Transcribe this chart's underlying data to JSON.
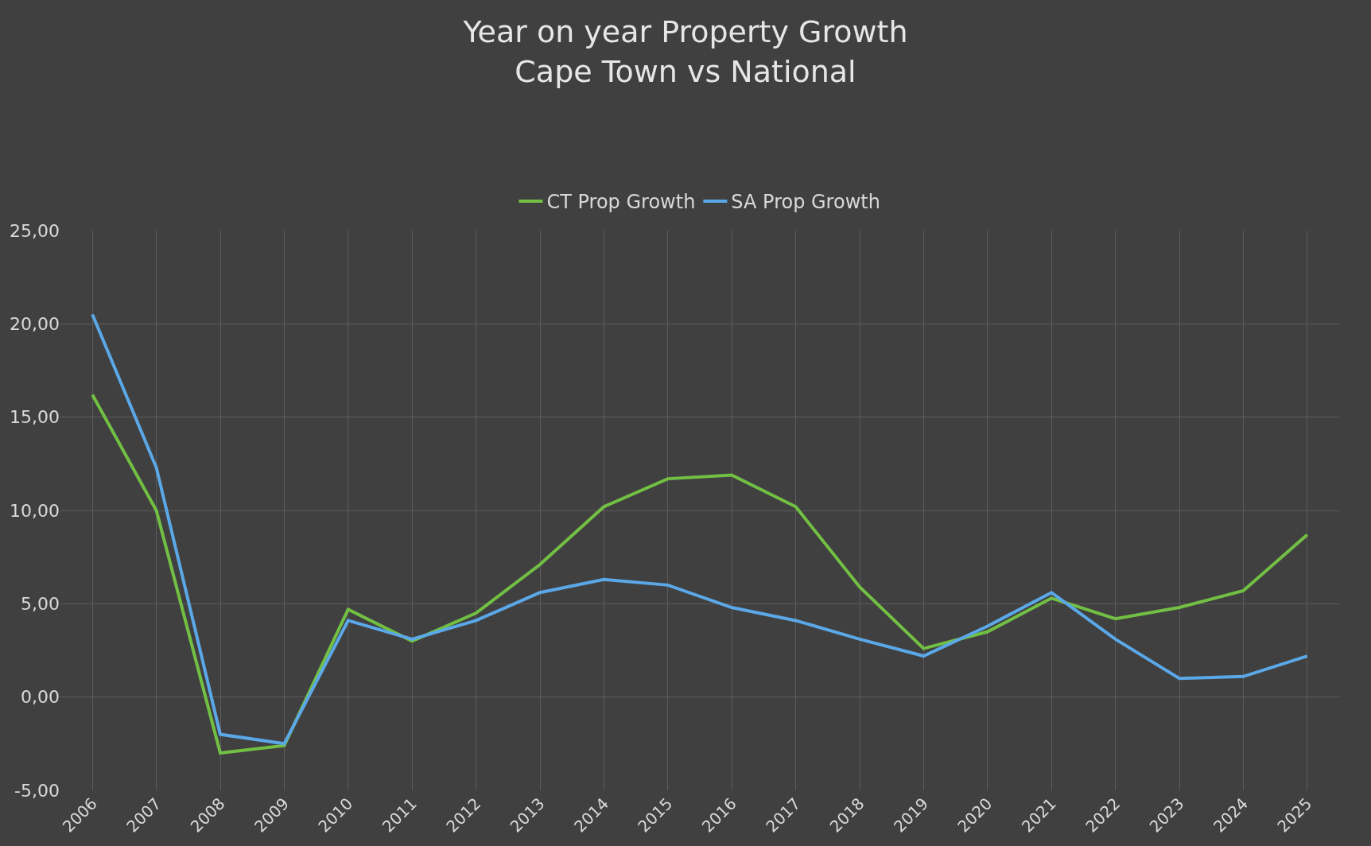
{
  "chart_data": {
    "type": "line",
    "title": "Year on year Property Growth\nCape Town vs National",
    "categories": [
      "2006",
      "2007",
      "2008",
      "2009",
      "2010",
      "2011",
      "2012",
      "2013",
      "2014",
      "2015",
      "2016",
      "2017",
      "2018",
      "2019",
      "2020",
      "2021",
      "2022",
      "2023",
      "2024",
      "2025"
    ],
    "series": [
      {
        "name": "CT Prop Growth",
        "color": "#72c043",
        "values": [
          16.2,
          10.0,
          -3.0,
          -2.6,
          4.7,
          3.0,
          4.5,
          7.1,
          10.2,
          11.7,
          11.9,
          10.2,
          5.9,
          2.6,
          3.5,
          5.3,
          4.2,
          4.8,
          5.7,
          8.7
        ]
      },
      {
        "name": "SA Prop Growth",
        "color": "#5ba8e8",
        "values": [
          20.5,
          12.3,
          -2.0,
          -2.5,
          4.1,
          3.1,
          4.1,
          5.6,
          6.3,
          6.0,
          4.8,
          4.1,
          3.1,
          2.2,
          3.8,
          5.6,
          3.1,
          1.0,
          1.1,
          2.2
        ]
      }
    ],
    "ylim": [
      -5,
      25
    ],
    "yticks": [
      {
        "value": -5,
        "label": "-5,00"
      },
      {
        "value": 0,
        "label": "0,00"
      },
      {
        "value": 5,
        "label": "5,00"
      },
      {
        "value": 10,
        "label": "10,00"
      },
      {
        "value": 15,
        "label": "15,00"
      },
      {
        "value": 20,
        "label": "20,00"
      },
      {
        "value": 25,
        "label": "25,00"
      }
    ],
    "grid": true,
    "legend": "top",
    "marker": "none",
    "line_style": "solid"
  }
}
